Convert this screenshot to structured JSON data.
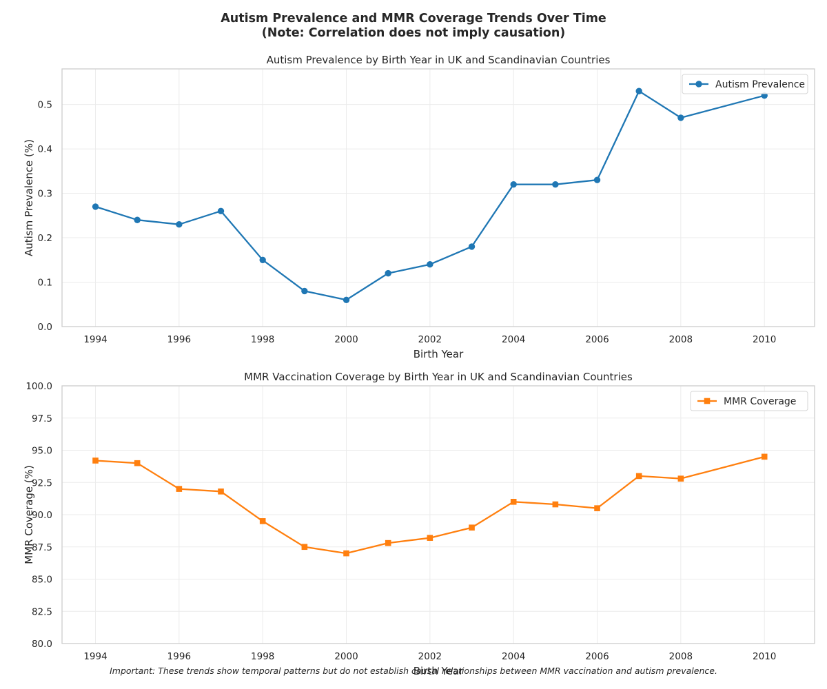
{
  "figure": {
    "title_line1": "Autism Prevalence and MMR Coverage Trends Over Time",
    "title_line2": "(Note: Correlation does not imply causation)",
    "footnote": "Important: These trends show temporal patterns but do not establish causal relationships between MMR vaccination and autism prevalence."
  },
  "chart_data": [
    {
      "type": "line",
      "title": "Autism Prevalence by Birth Year in UK and Scandinavian Countries",
      "xlabel": "Birth Year",
      "ylabel": "Autism Prevalence (%)",
      "x": [
        1994,
        1995,
        1996,
        1997,
        1998,
        1999,
        2000,
        2001,
        2002,
        2003,
        2004,
        2005,
        2006,
        2007,
        2008,
        2010
      ],
      "series": [
        {
          "name": "Autism Prevalence",
          "values": [
            0.27,
            0.24,
            0.23,
            0.26,
            0.15,
            0.08,
            0.06,
            0.12,
            0.14,
            0.18,
            0.32,
            0.32,
            0.33,
            0.53,
            0.47,
            0.52
          ],
          "color": "#1f77b4",
          "marker": "circle"
        }
      ],
      "xlim": [
        1993.2,
        2011.2
      ],
      "ylim": [
        0,
        0.58
      ],
      "xticks": [
        "1994",
        "1996",
        "1998",
        "2000",
        "2002",
        "2004",
        "2006",
        "2008",
        "2010"
      ],
      "yticks": [
        "0.0",
        "0.1",
        "0.2",
        "0.3",
        "0.4",
        "0.5"
      ],
      "grid": true,
      "legend_position": "top-right"
    },
    {
      "type": "line",
      "title": "MMR Vaccination Coverage by Birth Year in UK and Scandinavian Countries",
      "xlabel": "Birth Year",
      "ylabel": "MMR Coverage (%)",
      "x": [
        1994,
        1995,
        1996,
        1997,
        1998,
        1999,
        2000,
        2001,
        2002,
        2003,
        2004,
        2005,
        2006,
        2007,
        2008,
        2010
      ],
      "series": [
        {
          "name": "MMR Coverage",
          "values": [
            94.2,
            94.0,
            92.0,
            91.8,
            89.5,
            87.5,
            87.0,
            87.8,
            88.2,
            89.0,
            91.0,
            90.8,
            90.5,
            93.0,
            92.8,
            94.5
          ],
          "color": "#ff7f0e",
          "marker": "square"
        }
      ],
      "xlim": [
        1993.2,
        2011.2
      ],
      "ylim": [
        80,
        100
      ],
      "xticks": [
        "1994",
        "1996",
        "1998",
        "2000",
        "2002",
        "2004",
        "2006",
        "2008",
        "2010"
      ],
      "yticks": [
        "80.0",
        "82.5",
        "85.0",
        "87.5",
        "90.0",
        "92.5",
        "95.0",
        "97.5",
        "100.0"
      ],
      "grid": true,
      "legend_position": "top-right"
    }
  ]
}
